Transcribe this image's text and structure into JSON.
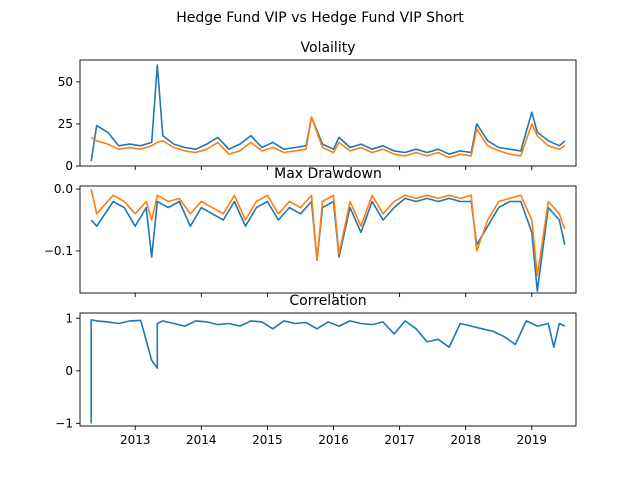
{
  "figure": {
    "suptitle": "Hedge Fund VIP vs Hedge Fund VIP Short",
    "series_colors": [
      "#1f77b4",
      "#ff7f0e"
    ]
  },
  "chart_data": [
    {
      "type": "line",
      "title": "Volaility",
      "xlabel": "",
      "ylabel": "",
      "x_range": [
        "2012-05",
        "2019-07"
      ],
      "ylim": [
        0,
        63
      ],
      "yticks": [
        0,
        25,
        50
      ],
      "ytick_labels": [
        "0",
        "25",
        "50"
      ],
      "grid": false,
      "series": [
        {
          "x": [
            "2012-05",
            "2012-06",
            "2012-08",
            "2012-10",
            "2012-12",
            "2013-02",
            "2013-04",
            "2013-05",
            "2013-06",
            "2013-08",
            "2013-10",
            "2013-12",
            "2014-02",
            "2014-04",
            "2014-06",
            "2014-08",
            "2014-10",
            "2014-12",
            "2015-02",
            "2015-04",
            "2015-06",
            "2015-08",
            "2015-09",
            "2015-11",
            "2016-01",
            "2016-02",
            "2016-04",
            "2016-06",
            "2016-08",
            "2016-10",
            "2016-12",
            "2017-02",
            "2017-04",
            "2017-06",
            "2017-08",
            "2017-10",
            "2017-12",
            "2018-02",
            "2018-03",
            "2018-05",
            "2018-07",
            "2018-09",
            "2018-11",
            "2019-01",
            "2019-02",
            "2019-04",
            "2019-06",
            "2019-07"
          ],
          "values": [
            3,
            24,
            20,
            12,
            13,
            12,
            14,
            60,
            18,
            13,
            11,
            10,
            13,
            17,
            10,
            13,
            18,
            11,
            14,
            10,
            11,
            12,
            29,
            13,
            10,
            17,
            11,
            13,
            10,
            12,
            9,
            8,
            10,
            8,
            10,
            7,
            9,
            8,
            25,
            15,
            11,
            10,
            9,
            32,
            20,
            15,
            12,
            15
          ]
        },
        {
          "x": [
            "2012-05",
            "2012-06",
            "2012-08",
            "2012-10",
            "2012-12",
            "2013-02",
            "2013-04",
            "2013-05",
            "2013-06",
            "2013-08",
            "2013-10",
            "2013-12",
            "2014-02",
            "2014-04",
            "2014-06",
            "2014-08",
            "2014-10",
            "2014-12",
            "2015-02",
            "2015-04",
            "2015-06",
            "2015-08",
            "2015-09",
            "2015-11",
            "2016-01",
            "2016-02",
            "2016-04",
            "2016-06",
            "2016-08",
            "2016-10",
            "2016-12",
            "2017-02",
            "2017-04",
            "2017-06",
            "2017-08",
            "2017-10",
            "2017-12",
            "2018-02",
            "2018-03",
            "2018-05",
            "2018-07",
            "2018-09",
            "2018-11",
            "2019-01",
            "2019-02",
            "2019-04",
            "2019-06",
            "2019-07"
          ],
          "values": [
            17,
            15,
            13,
            10,
            11,
            10,
            12,
            14,
            15,
            11,
            9,
            8,
            10,
            14,
            7,
            9,
            14,
            9,
            11,
            8,
            9,
            10,
            29,
            11,
            8,
            14,
            9,
            11,
            8,
            10,
            7,
            6,
            8,
            6,
            8,
            5,
            7,
            6,
            22,
            12,
            9,
            7,
            6,
            25,
            18,
            12,
            10,
            12
          ]
        }
      ]
    },
    {
      "type": "line",
      "title": "Max Drawdown",
      "xlabel": "",
      "ylabel": "",
      "x_range": [
        "2012-05",
        "2019-07"
      ],
      "ylim": [
        -0.168,
        0.005
      ],
      "yticks": [
        -0.1,
        0.0
      ],
      "ytick_labels": [
        "−0.1",
        "0.0"
      ],
      "grid": false,
      "series": [
        {
          "x": [
            "2012-05",
            "2012-06",
            "2012-09",
            "2012-11",
            "2013-01",
            "2013-03",
            "2013-04",
            "2013-05",
            "2013-07",
            "2013-09",
            "2013-11",
            "2014-01",
            "2014-03",
            "2014-05",
            "2014-07",
            "2014-09",
            "2014-11",
            "2015-01",
            "2015-03",
            "2015-05",
            "2015-07",
            "2015-09",
            "2015-10",
            "2015-11",
            "2016-01",
            "2016-02",
            "2016-04",
            "2016-06",
            "2016-08",
            "2016-10",
            "2016-12",
            "2017-02",
            "2017-04",
            "2017-06",
            "2017-08",
            "2017-10",
            "2017-12",
            "2018-02",
            "2018-03",
            "2018-05",
            "2018-07",
            "2018-09",
            "2018-11",
            "2019-01",
            "2019-02",
            "2019-04",
            "2019-06",
            "2019-07"
          ],
          "values": [
            -0.05,
            -0.06,
            -0.02,
            -0.03,
            -0.06,
            -0.03,
            -0.11,
            -0.02,
            -0.03,
            -0.02,
            -0.06,
            -0.03,
            -0.04,
            -0.05,
            -0.02,
            -0.06,
            -0.03,
            -0.02,
            -0.05,
            -0.03,
            -0.04,
            -0.02,
            -0.115,
            -0.03,
            -0.02,
            -0.11,
            -0.03,
            -0.07,
            -0.02,
            -0.05,
            -0.03,
            -0.015,
            -0.02,
            -0.015,
            -0.02,
            -0.015,
            -0.02,
            -0.02,
            -0.09,
            -0.06,
            -0.03,
            -0.02,
            -0.02,
            -0.07,
            -0.165,
            -0.03,
            -0.05,
            -0.09
          ]
        },
        {
          "x": [
            "2012-05",
            "2012-06",
            "2012-09",
            "2012-11",
            "2013-01",
            "2013-03",
            "2013-04",
            "2013-05",
            "2013-07",
            "2013-09",
            "2013-11",
            "2014-01",
            "2014-03",
            "2014-05",
            "2014-07",
            "2014-09",
            "2014-11",
            "2015-01",
            "2015-03",
            "2015-05",
            "2015-07",
            "2015-09",
            "2015-10",
            "2015-11",
            "2016-01",
            "2016-02",
            "2016-04",
            "2016-06",
            "2016-08",
            "2016-10",
            "2016-12",
            "2017-02",
            "2017-04",
            "2017-06",
            "2017-08",
            "2017-10",
            "2017-12",
            "2018-02",
            "2018-03",
            "2018-05",
            "2018-07",
            "2018-09",
            "2018-11",
            "2019-01",
            "2019-02",
            "2019-04",
            "2019-06",
            "2019-07"
          ],
          "values": [
            0.0,
            -0.04,
            -0.01,
            -0.02,
            -0.04,
            -0.02,
            -0.05,
            -0.01,
            -0.02,
            -0.015,
            -0.04,
            -0.02,
            -0.03,
            -0.04,
            -0.01,
            -0.05,
            -0.02,
            -0.01,
            -0.04,
            -0.02,
            -0.03,
            -0.01,
            -0.115,
            -0.02,
            -0.01,
            -0.105,
            -0.02,
            -0.06,
            -0.01,
            -0.04,
            -0.02,
            -0.01,
            -0.015,
            -0.01,
            -0.015,
            -0.01,
            -0.015,
            -0.01,
            -0.1,
            -0.05,
            -0.02,
            -0.015,
            -0.01,
            -0.05,
            -0.14,
            -0.02,
            -0.04,
            -0.065
          ]
        }
      ]
    },
    {
      "type": "line",
      "title": "Correlation",
      "xlabel": "",
      "ylabel": "",
      "x_range": [
        "2012-05",
        "2019-07"
      ],
      "ylim": [
        -1.05,
        1.1
      ],
      "yticks": [
        -1,
        0,
        1
      ],
      "ytick_labels": [
        "−1",
        "0",
        "1"
      ],
      "xticks": [
        "2013-01",
        "2014-01",
        "2015-01",
        "2016-01",
        "2017-01",
        "2018-01",
        "2019-01"
      ],
      "xtick_labels": [
        "2013",
        "2014",
        "2015",
        "2016",
        "2017",
        "2018",
        "2019"
      ],
      "grid": false,
      "series": [
        {
          "x": [
            "2012-05",
            "2012-05",
            "2012-06",
            "2012-08",
            "2012-10",
            "2012-12",
            "2013-02",
            "2013-04",
            "2013-05",
            "2013-05",
            "2013-06",
            "2013-08",
            "2013-10",
            "2013-12",
            "2014-02",
            "2014-04",
            "2014-06",
            "2014-08",
            "2014-10",
            "2014-12",
            "2015-02",
            "2015-04",
            "2015-06",
            "2015-08",
            "2015-10",
            "2015-12",
            "2016-02",
            "2016-04",
            "2016-06",
            "2016-08",
            "2016-10",
            "2016-12",
            "2017-02",
            "2017-04",
            "2017-06",
            "2017-08",
            "2017-10",
            "2017-12",
            "2018-02",
            "2018-04",
            "2018-06",
            "2018-08",
            "2018-10",
            "2018-12",
            "2019-02",
            "2019-04",
            "2019-05",
            "2019-06",
            "2019-07"
          ],
          "values": [
            -1,
            0.97,
            0.95,
            0.93,
            0.9,
            0.95,
            0.96,
            0.2,
            0.05,
            0.9,
            0.95,
            0.9,
            0.85,
            0.95,
            0.93,
            0.88,
            0.9,
            0.85,
            0.95,
            0.93,
            0.8,
            0.95,
            0.9,
            0.92,
            0.8,
            0.93,
            0.85,
            0.95,
            0.9,
            0.88,
            0.93,
            0.7,
            0.95,
            0.8,
            0.55,
            0.6,
            0.45,
            0.9,
            0.85,
            0.8,
            0.75,
            0.65,
            0.5,
            0.95,
            0.85,
            0.9,
            0.45,
            0.9,
            0.85
          ]
        }
      ]
    }
  ]
}
